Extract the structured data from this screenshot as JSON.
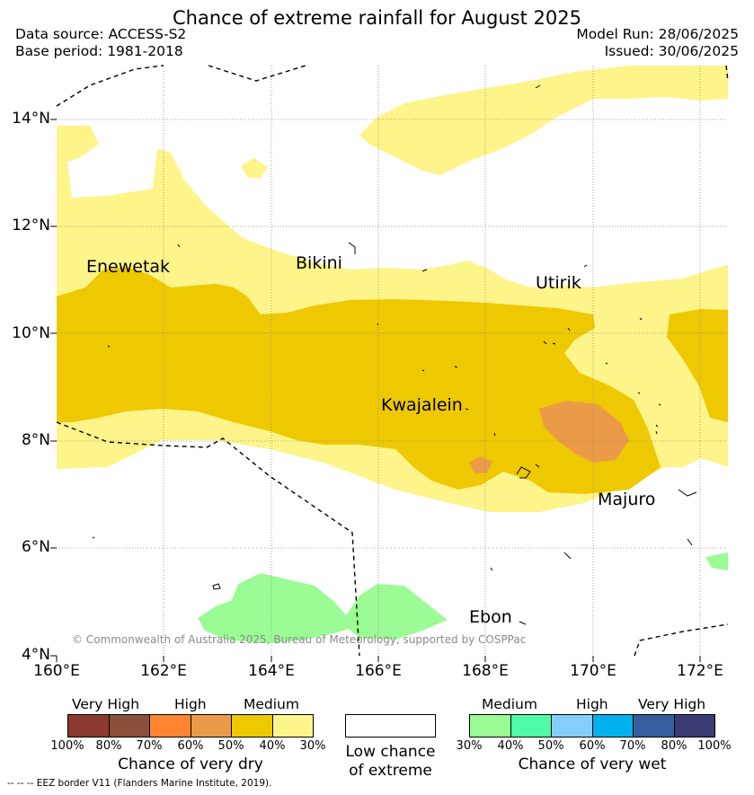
{
  "title": "Chance of extreme rainfall for August 2025",
  "meta": {
    "data_source": "Data source: ACCESS-S2",
    "base_period": "Base period: 1981-2018",
    "model_run": "Model Run: 28/06/2025",
    "issued": "Issued: 30/06/2025"
  },
  "map": {
    "lat_labels": [
      "14°N",
      "12°N",
      "10°N",
      "8°N",
      "6°N",
      "4°N"
    ],
    "lon_labels": [
      "160°E",
      "162°E",
      "164°E",
      "166°E",
      "168°E",
      "170°E",
      "172°E"
    ],
    "places": {
      "enewetak": "Enewetak",
      "bikini": "Bikini",
      "utirik": "Utirik",
      "kwajalein": "Kwajalein",
      "majuro": "Majuro",
      "ebon": "Ebon"
    },
    "copyright": "© Commonwealth of Australia 2025, Bureau of Meteorology, supported by COSPPac",
    "colors": {
      "dry_30_40": "#fdf48a",
      "dry_40_50": "#eec800",
      "dry_50_60": "#eb9a48",
      "wet_30_40": "#9bfb94"
    }
  },
  "legend": {
    "dry": {
      "headers": [
        "Very High",
        "High",
        "Medium"
      ],
      "ticks": [
        "100%",
        "80%",
        "70%",
        "60%",
        "50%",
        "40%",
        "30%"
      ],
      "colors": [
        "#8c3a2f",
        "#8b4f3b",
        "#ff8531",
        "#eb9a48",
        "#eec800",
        "#fdf48a"
      ],
      "title": "Chance of very dry"
    },
    "low": {
      "title_line1": "Low chance",
      "title_line2": "of extreme"
    },
    "wet": {
      "headers": [
        "Medium",
        "High",
        "Very High"
      ],
      "ticks": [
        "30%",
        "40%",
        "50%",
        "60%",
        "70%",
        "80%",
        "100%"
      ],
      "colors": [
        "#9bfb94",
        "#4ffca5",
        "#84cefb",
        "#00b1ec",
        "#375e9e",
        "#3c3b73"
      ],
      "title": "Chance of very wet"
    }
  },
  "footnote": "--  --  -- EEZ border V11 (Flanders Marine Institute, 2019)."
}
